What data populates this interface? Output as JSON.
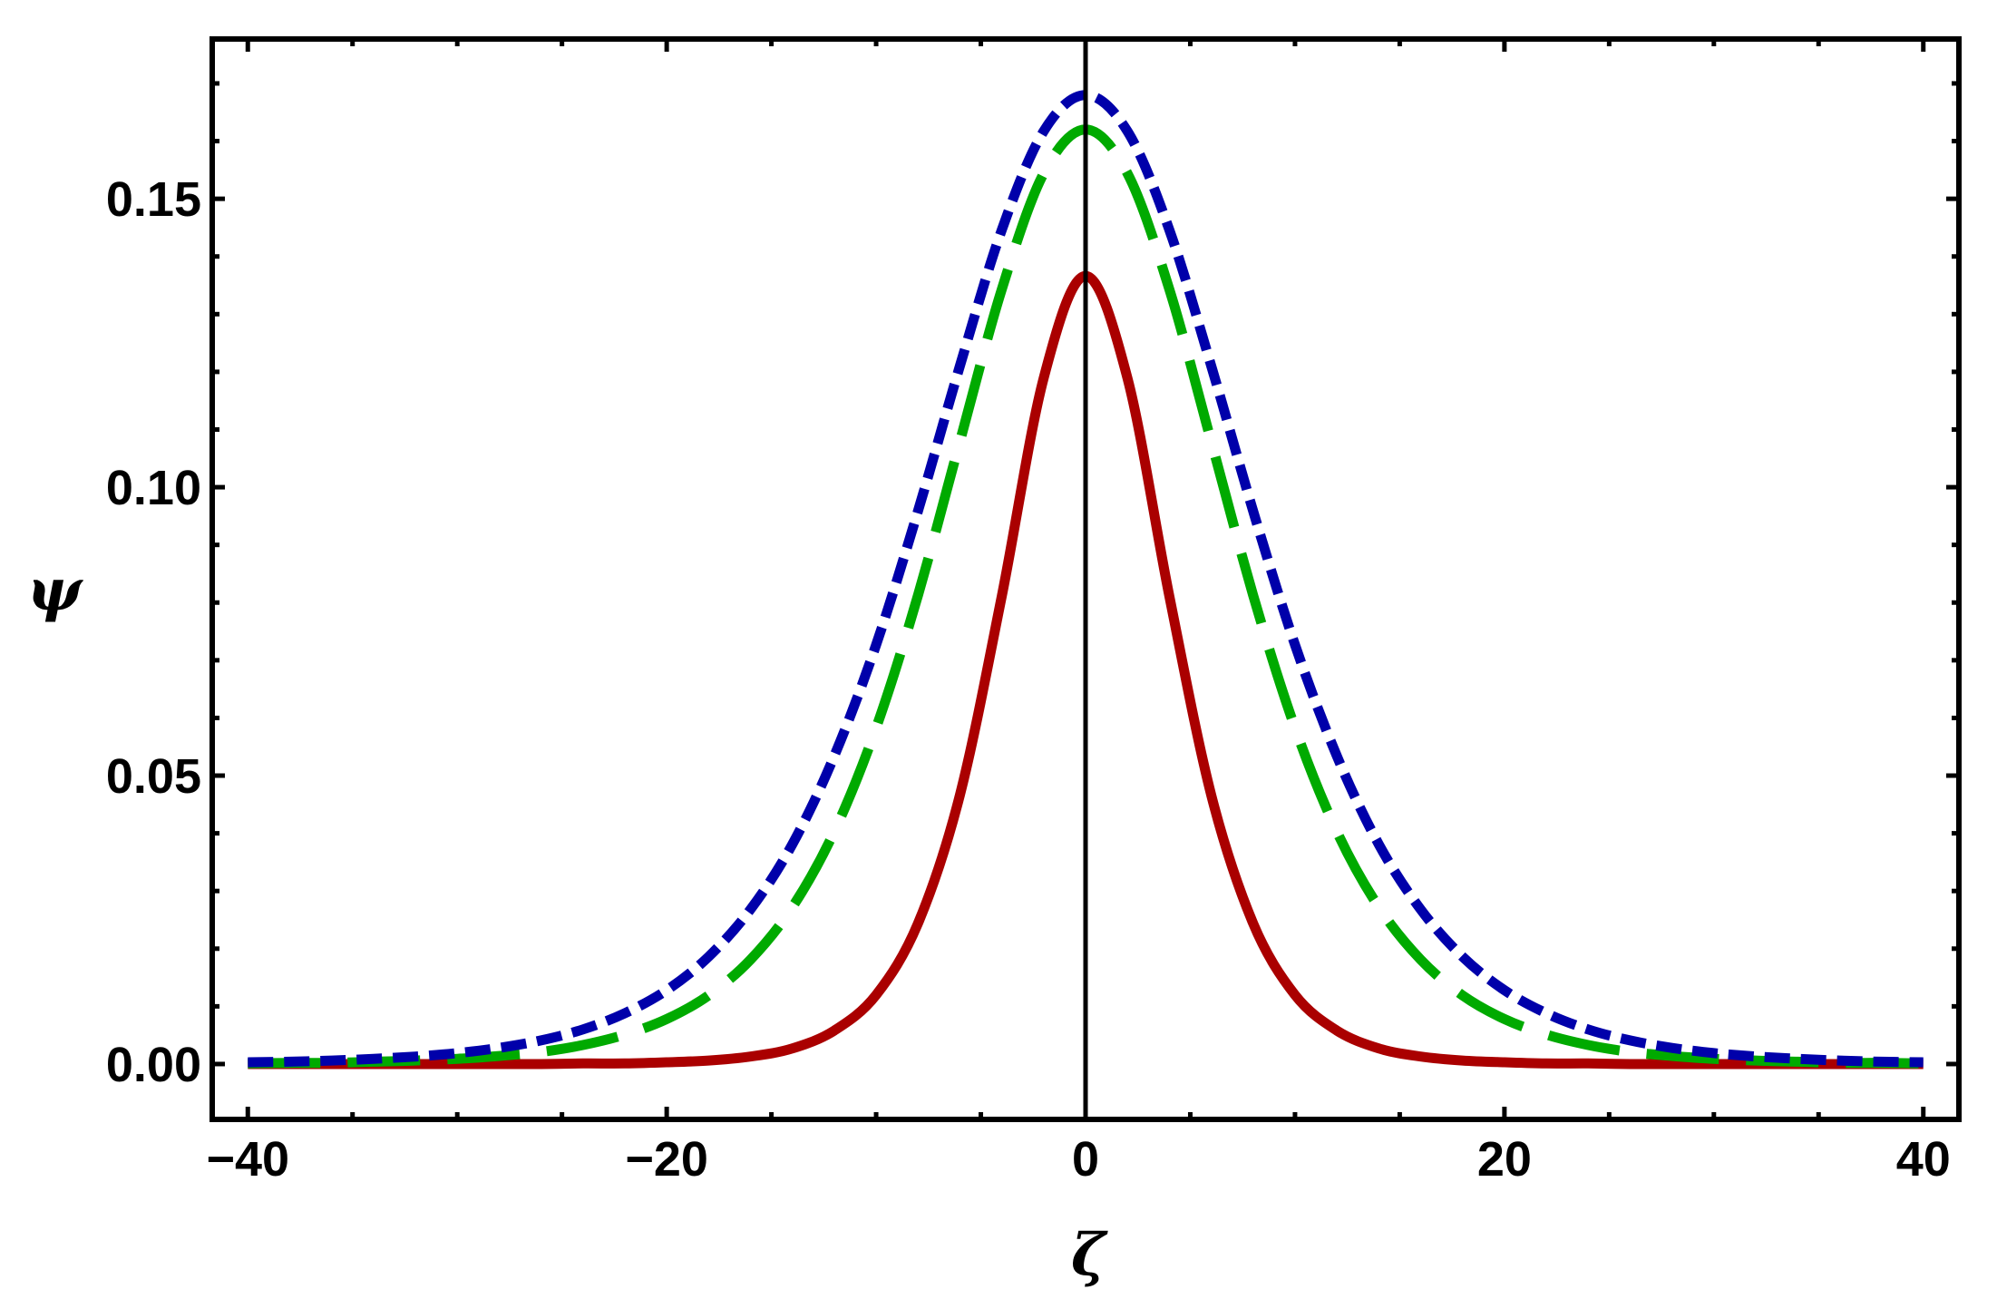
{
  "chart_data": {
    "type": "line",
    "title": "",
    "xlabel": "ζ",
    "ylabel": "ψ",
    "xlim": [
      -41.7,
      41.7
    ],
    "ylim": [
      -0.0096,
      0.1777
    ],
    "grid": false,
    "legend": null,
    "x_ticks": {
      "major": [
        -40,
        -20,
        0,
        20,
        40
      ],
      "major_labels": [
        "−40",
        "−20",
        "0",
        "20",
        "40"
      ],
      "minor_step": 5
    },
    "y_ticks": {
      "major": [
        0.0,
        0.05,
        0.1,
        0.15
      ],
      "major_labels": [
        "0.00",
        "0.05",
        "0.10",
        "0.15"
      ],
      "minor_step": 0.01
    },
    "vertical_reference_line": {
      "x": 0,
      "color": "#000000"
    },
    "x": [
      -40,
      -38,
      -36,
      -34,
      -32,
      -30,
      -28,
      -26,
      -24,
      -22,
      -20,
      -18,
      -16,
      -14,
      -12,
      -10,
      -8,
      -6,
      -4,
      -2,
      0,
      2,
      4,
      6,
      8,
      10,
      12,
      14,
      16,
      18,
      20,
      22,
      24,
      26,
      28,
      30,
      32,
      34,
      36,
      38,
      40
    ],
    "series": [
      {
        "name": "solid (red)",
        "color": "#AA0000",
        "style": "solid",
        "peak": 0.1366,
        "values": [
          0.0,
          0.0,
          0.0,
          0.0,
          0.0,
          0.0,
          0.0,
          0.0,
          0.0001,
          0.0001,
          0.0003,
          0.0006,
          0.0013,
          0.0027,
          0.0058,
          0.012,
          0.0244,
          0.0466,
          0.0811,
          0.1189,
          0.1366,
          0.1189,
          0.0811,
          0.0466,
          0.0244,
          0.012,
          0.0058,
          0.0027,
          0.0013,
          0.0006,
          0.0003,
          0.0001,
          0.0001,
          0.0,
          0.0,
          0.0,
          0.0,
          0.0,
          0.0,
          0.0,
          0.0
        ]
      },
      {
        "name": "long-dashed (green)",
        "color": "#00AA00",
        "style": "long-dash",
        "peak": 0.162,
        "values": [
          0.0001,
          0.0002,
          0.0002,
          0.0004,
          0.0006,
          0.0009,
          0.0014,
          0.0021,
          0.0033,
          0.0051,
          0.0078,
          0.0119,
          0.0181,
          0.0272,
          0.0403,
          0.0583,
          0.0813,
          0.1079,
          0.1343,
          0.1544,
          0.162,
          0.1544,
          0.1343,
          0.1079,
          0.0813,
          0.0583,
          0.0403,
          0.0272,
          0.0181,
          0.0119,
          0.0078,
          0.0051,
          0.0033,
          0.0021,
          0.0014,
          0.0009,
          0.0006,
          0.0004,
          0.0002,
          0.0002,
          0.0001
        ]
      },
      {
        "name": "short-dashed (blue)",
        "color": "#0000AA",
        "style": "short-dash",
        "peak": 0.168,
        "values": [
          0.0003,
          0.0004,
          0.0006,
          0.0009,
          0.0013,
          0.0019,
          0.0028,
          0.0041,
          0.006,
          0.0088,
          0.0128,
          0.0186,
          0.0268,
          0.0381,
          0.0534,
          0.0727,
          0.0959,
          0.121,
          0.1446,
          0.1617,
          0.168,
          0.1617,
          0.1446,
          0.121,
          0.0959,
          0.0727,
          0.0534,
          0.0381,
          0.0268,
          0.0186,
          0.0128,
          0.0088,
          0.006,
          0.0041,
          0.0028,
          0.0019,
          0.0013,
          0.0009,
          0.0006,
          0.0004,
          0.0003
        ]
      }
    ]
  }
}
